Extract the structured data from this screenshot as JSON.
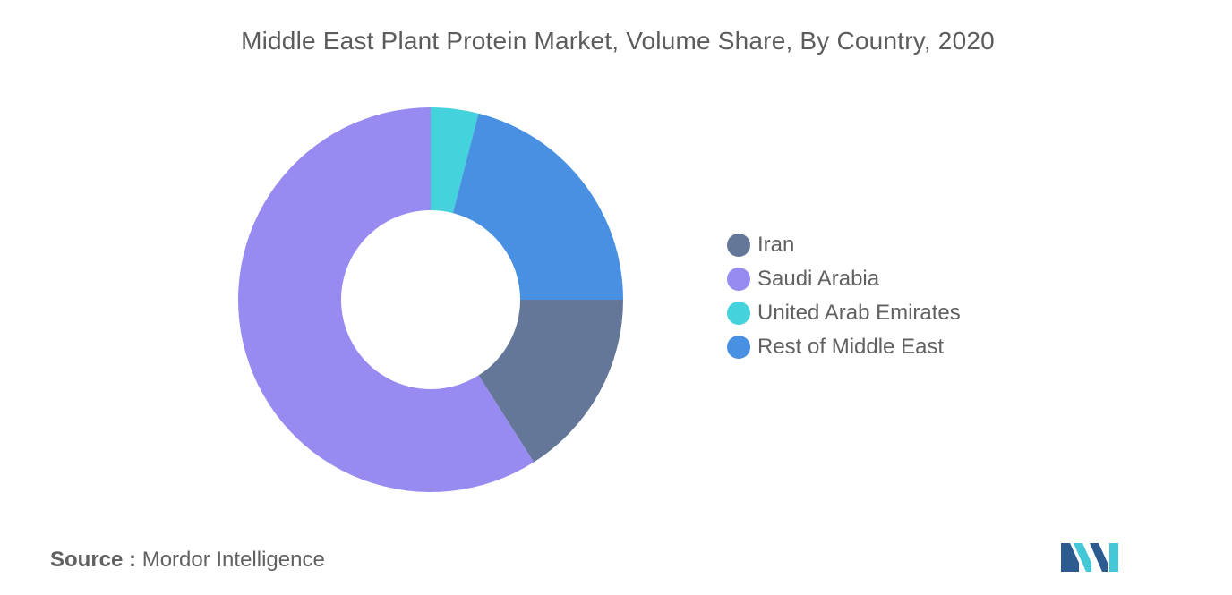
{
  "chart_data": {
    "type": "pie",
    "title": "Middle East Plant Protein Market, Volume Share, By Country, 2020",
    "categories": [
      "Iran",
      "Saudi Arabia",
      "United Arab Emirates",
      "Rest of Middle East"
    ],
    "values": [
      16.0,
      59.0,
      4.0,
      21.0
    ],
    "unit": "%",
    "donut": true,
    "start_slice": "United Arab Emirates",
    "direction": "clockwise",
    "colors": [
      "#657798",
      "#978AF0",
      "#44D2DC",
      "#4A90E2"
    ],
    "legend_position": "right"
  },
  "source": {
    "label": "Source :",
    "text": "Mordor Intelligence"
  },
  "logo": {
    "name": "mordor-intelligence-logo",
    "colors": [
      "#2C5B8F",
      "#44C7D6"
    ]
  }
}
